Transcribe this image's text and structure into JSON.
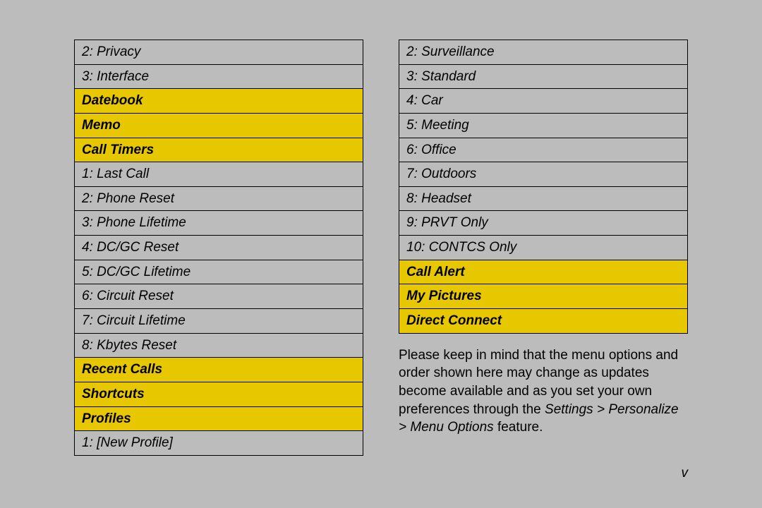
{
  "colors": {
    "page_bg": "#bcbcbc",
    "header_bg": "#e7c800",
    "border": "#000000",
    "text": "#000000"
  },
  "left_column": [
    {
      "type": "item",
      "text": "2: Privacy"
    },
    {
      "type": "item",
      "text": "3: Interface"
    },
    {
      "type": "header",
      "text": "Datebook"
    },
    {
      "type": "header",
      "text": "Memo"
    },
    {
      "type": "header",
      "text": "Call Timers"
    },
    {
      "type": "item",
      "text": "1: Last Call"
    },
    {
      "type": "item",
      "text": "2: Phone Reset"
    },
    {
      "type": "item",
      "text": "3: Phone Lifetime"
    },
    {
      "type": "item",
      "text": "4: DC/GC Reset"
    },
    {
      "type": "item",
      "text": "5: DC/GC Lifetime"
    },
    {
      "type": "item",
      "text": "6: Circuit Reset"
    },
    {
      "type": "item",
      "text": "7: Circuit Lifetime"
    },
    {
      "type": "item",
      "text": "8: Kbytes Reset"
    },
    {
      "type": "header",
      "text": "Recent Calls"
    },
    {
      "type": "header",
      "text": "Shortcuts"
    },
    {
      "type": "header",
      "text": "Profiles"
    },
    {
      "type": "item",
      "text": "1: [New Profile]"
    }
  ],
  "right_column": [
    {
      "type": "item",
      "text": "2: Surveillance"
    },
    {
      "type": "item",
      "text": "3: Standard"
    },
    {
      "type": "item",
      "text": "4: Car"
    },
    {
      "type": "item",
      "text": "5: Meeting"
    },
    {
      "type": "item",
      "text": "6: Office"
    },
    {
      "type": "item",
      "text": "7: Outdoors"
    },
    {
      "type": "item",
      "text": "8: Headset"
    },
    {
      "type": "item",
      "text": "9: PRVT Only"
    },
    {
      "type": "item",
      "text": "10: CONTCS Only"
    },
    {
      "type": "header",
      "text": "Call Alert"
    },
    {
      "type": "header",
      "text": "My Pictures"
    },
    {
      "type": "header",
      "text": "Direct Connect"
    }
  ],
  "paragraph": {
    "text_before": "Please keep in mind that the menu options and order shown here may change as updates become available and as you set your own preferences through the ",
    "path": "Settings > Personalize > Menu Options",
    "text_after": " feature."
  },
  "page_number": "v"
}
